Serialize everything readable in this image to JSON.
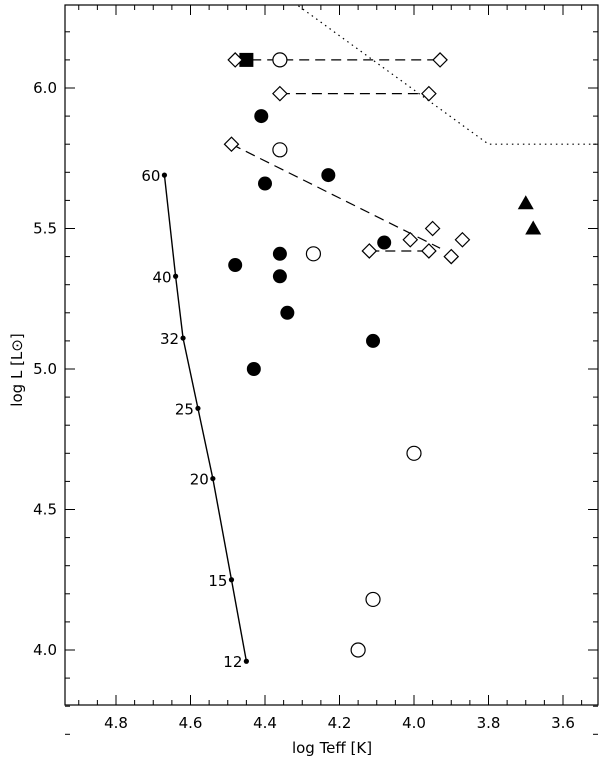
{
  "chart_data": {
    "type": "scatter",
    "title": "",
    "xlabel": "log Teff [K]",
    "ylabel": "log L [L⊙]",
    "xlim": [
      4.95,
      3.5
    ],
    "ylim": [
      3.7,
      6.3
    ],
    "x_ticks": [
      "4.8",
      "4.6",
      "4.4",
      "4.2",
      "4.0",
      "3.8",
      "3.6"
    ],
    "y_ticks": [
      "4.0",
      "4.5",
      "5.0",
      "5.5",
      "6.0"
    ],
    "grid": false,
    "legend": "none",
    "series": [
      {
        "marker": "filled-circle",
        "points": [
          {
            "x": 4.41,
            "y": 5.9
          },
          {
            "x": 4.4,
            "y": 5.66
          },
          {
            "x": 4.23,
            "y": 5.69
          },
          {
            "x": 4.48,
            "y": 5.37
          },
          {
            "x": 4.36,
            "y": 5.41
          },
          {
            "x": 4.36,
            "y": 5.33
          },
          {
            "x": 4.34,
            "y": 5.2
          },
          {
            "x": 4.08,
            "y": 5.45
          },
          {
            "x": 4.43,
            "y": 5.0
          },
          {
            "x": 4.11,
            "y": 5.1
          }
        ]
      },
      {
        "marker": "open-circle",
        "points": [
          {
            "x": 4.36,
            "y": 6.1
          },
          {
            "x": 4.36,
            "y": 5.78
          },
          {
            "x": 4.27,
            "y": 5.41
          },
          {
            "x": 4.0,
            "y": 4.7
          },
          {
            "x": 4.11,
            "y": 4.18
          },
          {
            "x": 4.15,
            "y": 4.0
          }
        ]
      },
      {
        "marker": "filled-square",
        "points": [
          {
            "x": 4.45,
            "y": 6.1
          }
        ]
      },
      {
        "marker": "filled-triangle",
        "points": [
          {
            "x": 3.7,
            "y": 5.59
          },
          {
            "x": 3.68,
            "y": 5.5
          }
        ]
      },
      {
        "marker": "open-diamond",
        "points": [
          {
            "x": 4.48,
            "y": 6.1
          },
          {
            "x": 3.93,
            "y": 6.1
          },
          {
            "x": 4.36,
            "y": 5.98
          },
          {
            "x": 3.96,
            "y": 5.98
          },
          {
            "x": 4.49,
            "y": 5.8
          },
          {
            "x": 3.95,
            "y": 5.5
          },
          {
            "x": 4.01,
            "y": 5.46
          },
          {
            "x": 3.87,
            "y": 5.46
          },
          {
            "x": 4.12,
            "y": 5.42
          },
          {
            "x": 3.96,
            "y": 5.42
          },
          {
            "x": 3.9,
            "y": 5.4
          }
        ]
      }
    ],
    "dashed_lines": [
      [
        {
          "x": 4.48,
          "y": 6.1
        },
        {
          "x": 3.93,
          "y": 6.1
        }
      ],
      [
        {
          "x": 4.36,
          "y": 5.98
        },
        {
          "x": 3.96,
          "y": 5.98
        }
      ],
      [
        {
          "x": 4.49,
          "y": 5.8
        },
        {
          "x": 3.93,
          "y": 5.43
        }
      ],
      [
        {
          "x": 4.12,
          "y": 5.42
        },
        {
          "x": 3.96,
          "y": 5.42
        }
      ]
    ],
    "dotted_line": [
      {
        "x": 4.37,
        "y": 6.35
      },
      {
        "x": 3.8,
        "y": 5.8
      },
      {
        "x": 3.5,
        "y": 5.8
      }
    ],
    "zams": {
      "points": [
        {
          "x": 4.67,
          "y": 5.69,
          "label": "60"
        },
        {
          "x": 4.64,
          "y": 5.33,
          "label": "40"
        },
        {
          "x": 4.62,
          "y": 5.11,
          "label": "32"
        },
        {
          "x": 4.58,
          "y": 4.86,
          "label": "25"
        },
        {
          "x": 4.54,
          "y": 4.61,
          "label": "20"
        },
        {
          "x": 4.49,
          "y": 4.25,
          "label": "15"
        },
        {
          "x": 4.45,
          "y": 3.96,
          "label": "12"
        }
      ]
    }
  }
}
